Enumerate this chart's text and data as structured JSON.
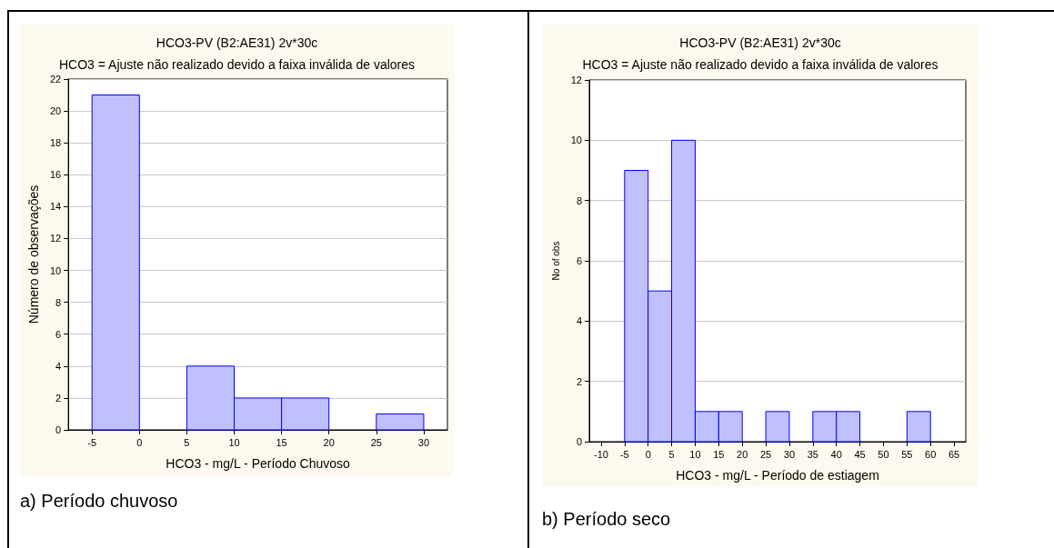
{
  "chart_data": [
    {
      "type": "histogram",
      "title": "HCO3-PV (B2:AE31) 2v*30c",
      "subtitle": "HCO3 = Ajuste não realizado devido a faixa inválida de valores",
      "xlabel": "HCO3 - mg/L - Período Chuvoso",
      "ylabel": "Número de observações",
      "bins": [
        -5,
        0,
        5,
        10,
        15,
        20,
        25,
        30
      ],
      "values": [
        21,
        0,
        4,
        2,
        2,
        0,
        1
      ],
      "color": "#c0c0ff",
      "xlim": [
        -7.5,
        32.5
      ],
      "xticks": [
        -5,
        0,
        5,
        10,
        15,
        20,
        25,
        30
      ],
      "ylim": [
        0,
        22
      ],
      "yticks": [
        0,
        2,
        4,
        6,
        8,
        10,
        12,
        14,
        16,
        18,
        20,
        22
      ],
      "grid": "y",
      "annotations": [
        "a) Período chuvoso"
      ]
    },
    {
      "type": "histogram",
      "title": "HCO3-PV (B2:AE31) 2v*30c",
      "subtitle": "HCO3 = Ajuste não realizado devido a faixa inválida de valores",
      "xlabel": "HCO3 - mg/L - Período de estiagem",
      "ylabel": "No of obs",
      "bins": [
        -5,
        0,
        5,
        10,
        15,
        20,
        25,
        30,
        35,
        40,
        45,
        50,
        55,
        60
      ],
      "values": [
        9,
        5,
        10,
        1,
        1,
        0,
        1,
        0,
        1,
        1,
        0,
        0,
        1
      ],
      "color": "#c0c0ff",
      "xlim": [
        -12.5,
        67.5
      ],
      "xticks": [
        -10,
        -5,
        0,
        5,
        10,
        15,
        20,
        25,
        30,
        35,
        40,
        45,
        50,
        55,
        60,
        65
      ],
      "ylim": [
        0,
        12
      ],
      "yticks": [
        0,
        2,
        4,
        6,
        8,
        10,
        12
      ],
      "grid": "y",
      "annotations": [
        "b) Período seco"
      ]
    }
  ]
}
